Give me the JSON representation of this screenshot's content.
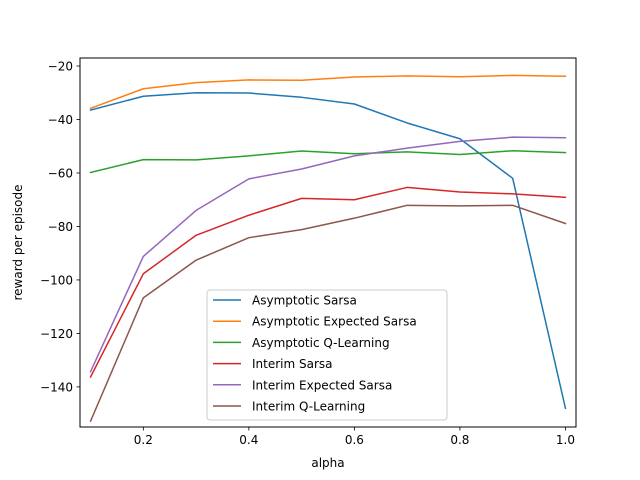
{
  "chart_data": {
    "type": "line",
    "title": "",
    "xlabel": "alpha",
    "ylabel": "reward per episode",
    "xlim": [
      0.08,
      1.02
    ],
    "ylim": [
      -155,
      -17
    ],
    "x_ticks": [
      0.2,
      0.4,
      0.6,
      0.8,
      1.0
    ],
    "x_tick_labels": [
      "0.2",
      "0.4",
      "0.6",
      "0.8",
      "1.0"
    ],
    "y_ticks": [
      -20,
      -40,
      -60,
      -80,
      -100,
      -120,
      -140
    ],
    "y_tick_labels": [
      "−20",
      "−40",
      "−60",
      "−80",
      "−100",
      "−120",
      "−140"
    ],
    "grid": false,
    "legend_position": "lower-center",
    "x": [
      0.1,
      0.2,
      0.3,
      0.4,
      0.5,
      0.6,
      0.7,
      0.8,
      0.9,
      1.0
    ],
    "series": [
      {
        "name": "Asymptotic Sarsa",
        "color": "#1f77b4",
        "values": [
          -36.5,
          -31.3,
          -30.0,
          -30.1,
          -31.7,
          -34.2,
          -41.3,
          -47.2,
          -62.0,
          -148.0
        ]
      },
      {
        "name": "Asymptotic Expected Sarsa",
        "color": "#ff7f0e",
        "values": [
          -35.8,
          -28.5,
          -26.2,
          -25.2,
          -25.3,
          -24.1,
          -23.7,
          -24.0,
          -23.5,
          -23.8
        ]
      },
      {
        "name": "Asymptotic Q-Learning",
        "color": "#2ca02c",
        "values": [
          -59.8,
          -55.0,
          -55.1,
          -53.6,
          -51.8,
          -52.8,
          -52.1,
          -53.1,
          -51.7,
          -52.4
        ]
      },
      {
        "name": "Interim Sarsa",
        "color": "#d62728",
        "values": [
          -136.3,
          -97.7,
          -83.3,
          -75.8,
          -69.5,
          -70.0,
          -65.4,
          -67.1,
          -67.8,
          -69.1
        ]
      },
      {
        "name": "Interim Expected Sarsa",
        "color": "#9467bd",
        "values": [
          -134.3,
          -91.2,
          -74.0,
          -62.2,
          -58.5,
          -53.6,
          -50.7,
          -48.2,
          -46.6,
          -46.8
        ]
      },
      {
        "name": "Interim Q-Learning",
        "color": "#8c564b",
        "values": [
          -152.8,
          -106.7,
          -92.6,
          -84.2,
          -81.2,
          -76.9,
          -72.1,
          -72.3,
          -72.1,
          -78.9
        ]
      }
    ]
  }
}
